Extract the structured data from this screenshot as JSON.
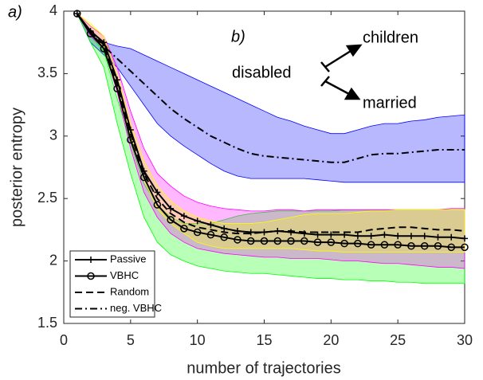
{
  "chart_data": {
    "type": "line",
    "xlabel": "number of trajectories",
    "ylabel": "posterior entropy",
    "annotations": [
      "a)",
      "b)",
      "disabled",
      "children",
      "married"
    ],
    "xlim": [
      0,
      30
    ],
    "xticks": [
      0,
      5,
      10,
      15,
      20,
      25,
      30
    ],
    "ylim": [
      1.5,
      4
    ],
    "yticks": [
      1.5,
      2,
      2.5,
      3,
      3.5,
      4
    ],
    "legend": "lower left",
    "x": [
      1,
      2,
      3,
      4,
      5,
      6,
      7,
      8,
      9,
      10,
      11,
      12,
      13,
      14,
      15,
      16,
      17,
      18,
      19,
      20,
      21,
      22,
      23,
      24,
      25,
      26,
      27,
      28,
      29,
      30
    ],
    "bands": [
      {
        "color": "#0000ff",
        "upper": [
          3.98,
          3.85,
          3.75,
          3.72,
          3.7,
          3.65,
          3.6,
          3.55,
          3.5,
          3.45,
          3.4,
          3.35,
          3.3,
          3.25,
          3.2,
          3.15,
          3.12,
          3.08,
          3.05,
          3.02,
          3.02,
          3.05,
          3.08,
          3.1,
          3.1,
          3.12,
          3.13,
          3.15,
          3.16,
          3.17
        ],
        "lower": [
          3.98,
          3.75,
          3.65,
          3.55,
          3.4,
          3.25,
          3.1,
          3.0,
          2.92,
          2.85,
          2.78,
          2.72,
          2.68,
          2.66,
          2.66,
          2.66,
          2.66,
          2.66,
          2.65,
          2.64,
          2.63,
          2.63,
          2.63,
          2.63,
          2.63,
          2.63,
          2.63,
          2.63,
          2.63,
          2.63
        ]
      },
      {
        "color": "#00ff00",
        "upper": [
          3.98,
          3.8,
          3.68,
          3.3,
          2.95,
          2.62,
          2.45,
          2.35,
          2.3,
          2.3,
          2.3,
          2.33,
          2.36,
          2.38,
          2.39,
          2.4,
          2.4,
          2.4,
          2.4,
          2.4,
          2.41,
          2.41,
          2.41,
          2.41,
          2.41,
          2.41,
          2.41,
          2.41,
          2.41,
          2.41
        ],
        "lower": [
          3.98,
          3.75,
          3.55,
          3.1,
          2.7,
          2.35,
          2.15,
          2.05,
          2.0,
          1.96,
          1.94,
          1.92,
          1.91,
          1.9,
          1.9,
          1.89,
          1.88,
          1.87,
          1.86,
          1.86,
          1.85,
          1.85,
          1.84,
          1.84,
          1.83,
          1.83,
          1.82,
          1.82,
          1.82,
          1.82
        ]
      },
      {
        "color": "#ff00ff",
        "upper": [
          3.98,
          3.88,
          3.8,
          3.55,
          3.2,
          2.9,
          2.7,
          2.6,
          2.52,
          2.47,
          2.44,
          2.42,
          2.41,
          2.4,
          2.4,
          2.41,
          2.41,
          2.4,
          2.41,
          2.41,
          2.41,
          2.41,
          2.41,
          2.41,
          2.41,
          2.41,
          2.41,
          2.41,
          2.42,
          2.42
        ],
        "lower": [
          3.98,
          3.8,
          3.7,
          3.35,
          2.9,
          2.55,
          2.35,
          2.22,
          2.15,
          2.1,
          2.08,
          2.06,
          2.05,
          2.04,
          2.03,
          2.03,
          2.02,
          2.02,
          2.02,
          2.01,
          2.0,
          2.0,
          1.99,
          1.98,
          1.98,
          1.97,
          1.96,
          1.95,
          1.95,
          1.94
        ]
      },
      {
        "color": "#ffff00",
        "upper": [
          3.98,
          3.9,
          3.8,
          3.5,
          3.1,
          2.8,
          2.6,
          2.48,
          2.4,
          2.35,
          2.32,
          2.3,
          2.3,
          2.3,
          2.31,
          2.33,
          2.35,
          2.37,
          2.38,
          2.38,
          2.38,
          2.39,
          2.4,
          2.4,
          2.41,
          2.41,
          2.41,
          2.41,
          2.41,
          2.41
        ],
        "lower": [
          3.98,
          3.82,
          3.72,
          3.4,
          3.0,
          2.65,
          2.42,
          2.3,
          2.22,
          2.15,
          2.12,
          2.1,
          2.1,
          2.1,
          2.1,
          2.1,
          2.1,
          2.09,
          2.08,
          2.08,
          2.07,
          2.07,
          2.07,
          2.07,
          2.07,
          2.07,
          2.07,
          2.07,
          2.07,
          2.07
        ]
      }
    ],
    "series": [
      {
        "name": "Passive",
        "color": "#000000",
        "marker": "plus",
        "dash": "solid",
        "values": [
          3.98,
          3.84,
          3.75,
          3.45,
          3.05,
          2.72,
          2.55,
          2.42,
          2.36,
          2.32,
          2.29,
          2.26,
          2.24,
          2.23,
          2.23,
          2.24,
          2.23,
          2.22,
          2.21,
          2.21,
          2.21,
          2.2,
          2.2,
          2.21,
          2.2,
          2.2,
          2.2,
          2.19,
          2.19,
          2.18
        ]
      },
      {
        "name": "VBHC",
        "color": "#000000",
        "marker": "circle",
        "dash": "solid",
        "values": [
          3.98,
          3.82,
          3.7,
          3.38,
          2.97,
          2.67,
          2.45,
          2.33,
          2.26,
          2.23,
          2.21,
          2.19,
          2.17,
          2.16,
          2.16,
          2.16,
          2.16,
          2.16,
          2.15,
          2.15,
          2.14,
          2.14,
          2.13,
          2.13,
          2.13,
          2.12,
          2.12,
          2.12,
          2.11,
          2.11
        ]
      },
      {
        "name": "Random",
        "color": "#000000",
        "marker": "none",
        "dash": "dashed",
        "values": [
          3.98,
          3.83,
          3.73,
          3.42,
          3.02,
          2.7,
          2.5,
          2.38,
          2.31,
          2.27,
          2.25,
          2.23,
          2.22,
          2.22,
          2.23,
          2.24,
          2.24,
          2.23,
          2.23,
          2.23,
          2.23,
          2.23,
          2.25,
          2.26,
          2.27,
          2.27,
          2.26,
          2.25,
          2.25,
          2.24
        ]
      },
      {
        "name": "neg. VBHC",
        "color": "#000000",
        "marker": "none",
        "dash": "dashdot",
        "values": [
          3.98,
          3.82,
          3.72,
          3.62,
          3.52,
          3.42,
          3.32,
          3.22,
          3.14,
          3.07,
          3.0,
          2.95,
          2.9,
          2.86,
          2.84,
          2.83,
          2.82,
          2.81,
          2.8,
          2.79,
          2.79,
          2.82,
          2.85,
          2.86,
          2.86,
          2.87,
          2.88,
          2.89,
          2.89,
          2.89
        ]
      }
    ]
  }
}
